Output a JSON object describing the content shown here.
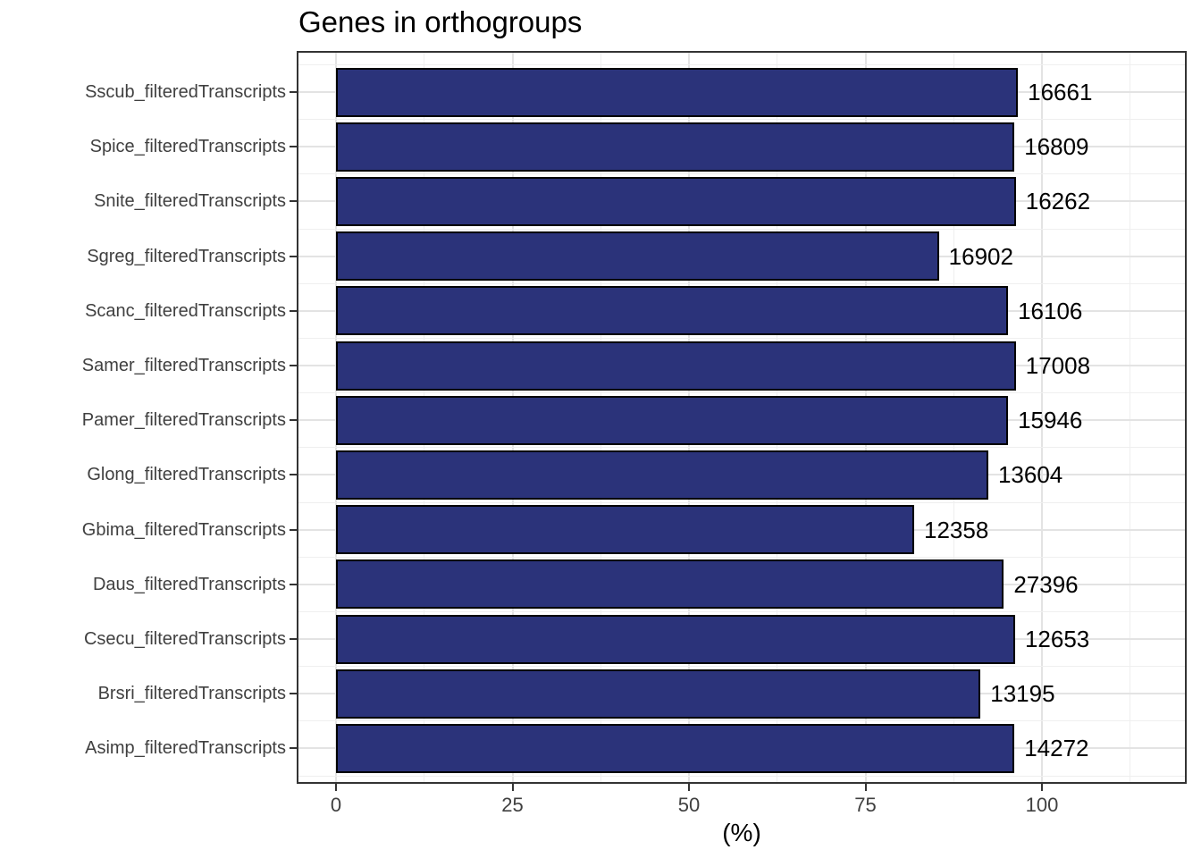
{
  "chart_data": {
    "type": "bar",
    "orientation": "horizontal",
    "title": "Genes in orthogroups",
    "xlabel": "(%)",
    "ylabel": "",
    "x_ticks": [
      0,
      25,
      50,
      75,
      100
    ],
    "xlim": [
      -5.6,
      120.5
    ],
    "grid": true,
    "legend": "none",
    "bar_fill_color": "#2B337A",
    "bar_border_color": "#000000",
    "categories": [
      "Sscub_filteredTranscripts",
      "Spice_filteredTranscripts",
      "Snite_filteredTranscripts",
      "Sgreg_filteredTranscripts",
      "Scanc_filteredTranscripts",
      "Samer_filteredTranscripts",
      "Pamer_filteredTranscripts",
      "Glong_filteredTranscripts",
      "Gbima_filteredTranscripts",
      "Daus_filteredTranscripts",
      "Csecu_filteredTranscripts",
      "Brsri_filteredTranscripts",
      "Asimp_filteredTranscripts"
    ],
    "values_pct": [
      96.6,
      96.1,
      96.3,
      85.4,
      95.2,
      96.3,
      95.2,
      92.4,
      81.9,
      94.6,
      96.2,
      91.3,
      96.1
    ],
    "bar_labels": [
      "16661",
      "16809",
      "16262",
      "16902",
      "16106",
      "17008",
      "15946",
      "13604",
      "12358",
      "27396",
      "12653",
      "13195",
      "14272"
    ]
  },
  "colors": {
    "bar_fill": "#2B337A",
    "bar_border": "#000000",
    "grid_major": "#e3e3e3",
    "grid_minor": "#efefef",
    "panel_border": "#333333",
    "axis_text": "#404040",
    "title_text": "#000000",
    "background": "#ffffff"
  }
}
